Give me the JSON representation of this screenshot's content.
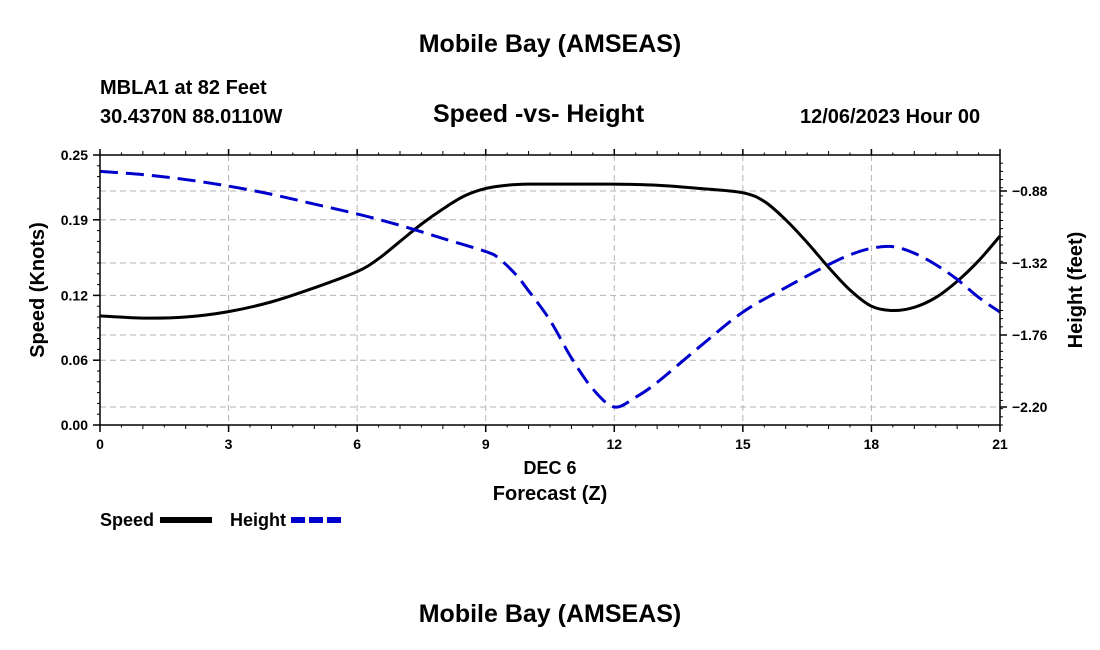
{
  "header": {
    "title": "Mobile Bay (AMSEAS)",
    "station": "MBLA1 at 82 Feet",
    "coordinates": "30.4370N  88.0110W",
    "date_hour": "12/06/2023 Hour 00"
  },
  "footer": {
    "title": "Mobile Bay (AMSEAS)"
  },
  "chart_data": {
    "type": "line",
    "title": "Speed -vs- Height",
    "xlabel_date": "DEC 6",
    "xlabel": "Forecast (Z)",
    "ylabel_left": "Speed (Knots)",
    "ylabel_right": "Height (feet)",
    "xlim": [
      0,
      21
    ],
    "xticks": [
      0,
      3,
      6,
      9,
      12,
      15,
      18,
      21
    ],
    "ylim_left": [
      0,
      0.25
    ],
    "yticks_left": [
      "0.00",
      "0.06",
      "0.12",
      "0.19",
      "0.25"
    ],
    "ylim_right": [
      -2.31,
      -0.66
    ],
    "yticks_right": [
      "-0.88",
      "-1.32",
      "-1.76",
      "-2.20"
    ],
    "grid": true,
    "legend": {
      "placement": "bottom-left",
      "entries": [
        {
          "label": "Speed",
          "color": "#000000",
          "style": "solid"
        },
        {
          "label": "Height",
          "color": "#0000cc",
          "style": "dashed"
        }
      ]
    },
    "series": [
      {
        "name": "Speed",
        "axis": "left",
        "color": "#000000",
        "style": "solid",
        "x": [
          0,
          1,
          2,
          3,
          4,
          5,
          6,
          6.5,
          7,
          7.5,
          8,
          8.5,
          9,
          9.5,
          10,
          11,
          12,
          13,
          14,
          15,
          15.5,
          16,
          16.5,
          17,
          17.5,
          18,
          18.5,
          19,
          19.5,
          20,
          20.5,
          21
        ],
        "values": [
          0.101,
          0.099,
          0.1,
          0.105,
          0.114,
          0.127,
          0.142,
          0.154,
          0.17,
          0.186,
          0.2,
          0.212,
          0.219,
          0.222,
          0.223,
          0.223,
          0.223,
          0.222,
          0.219,
          0.215,
          0.207,
          0.19,
          0.169,
          0.146,
          0.125,
          0.11,
          0.106,
          0.109,
          0.118,
          0.133,
          0.152,
          0.175
        ]
      },
      {
        "name": "Height",
        "axis": "right",
        "color": "#0000cc",
        "style": "dashed",
        "x": [
          0,
          1,
          2,
          3,
          4,
          5,
          6,
          7,
          8,
          9,
          9.3,
          9.7,
          10,
          10.5,
          11,
          11.5,
          12,
          12.5,
          13,
          14,
          15,
          16,
          17,
          17.5,
          18,
          18.5,
          19,
          19.5,
          20,
          20.5,
          21
        ],
        "values": [
          -0.76,
          -0.78,
          -0.81,
          -0.85,
          -0.9,
          -0.96,
          -1.02,
          -1.09,
          -1.17,
          -1.25,
          -1.29,
          -1.39,
          -1.49,
          -1.67,
          -1.9,
          -2.09,
          -2.2,
          -2.14,
          -2.05,
          -1.83,
          -1.62,
          -1.47,
          -1.33,
          -1.27,
          -1.23,
          -1.22,
          -1.26,
          -1.33,
          -1.42,
          -1.53,
          -1.62
        ]
      }
    ]
  }
}
